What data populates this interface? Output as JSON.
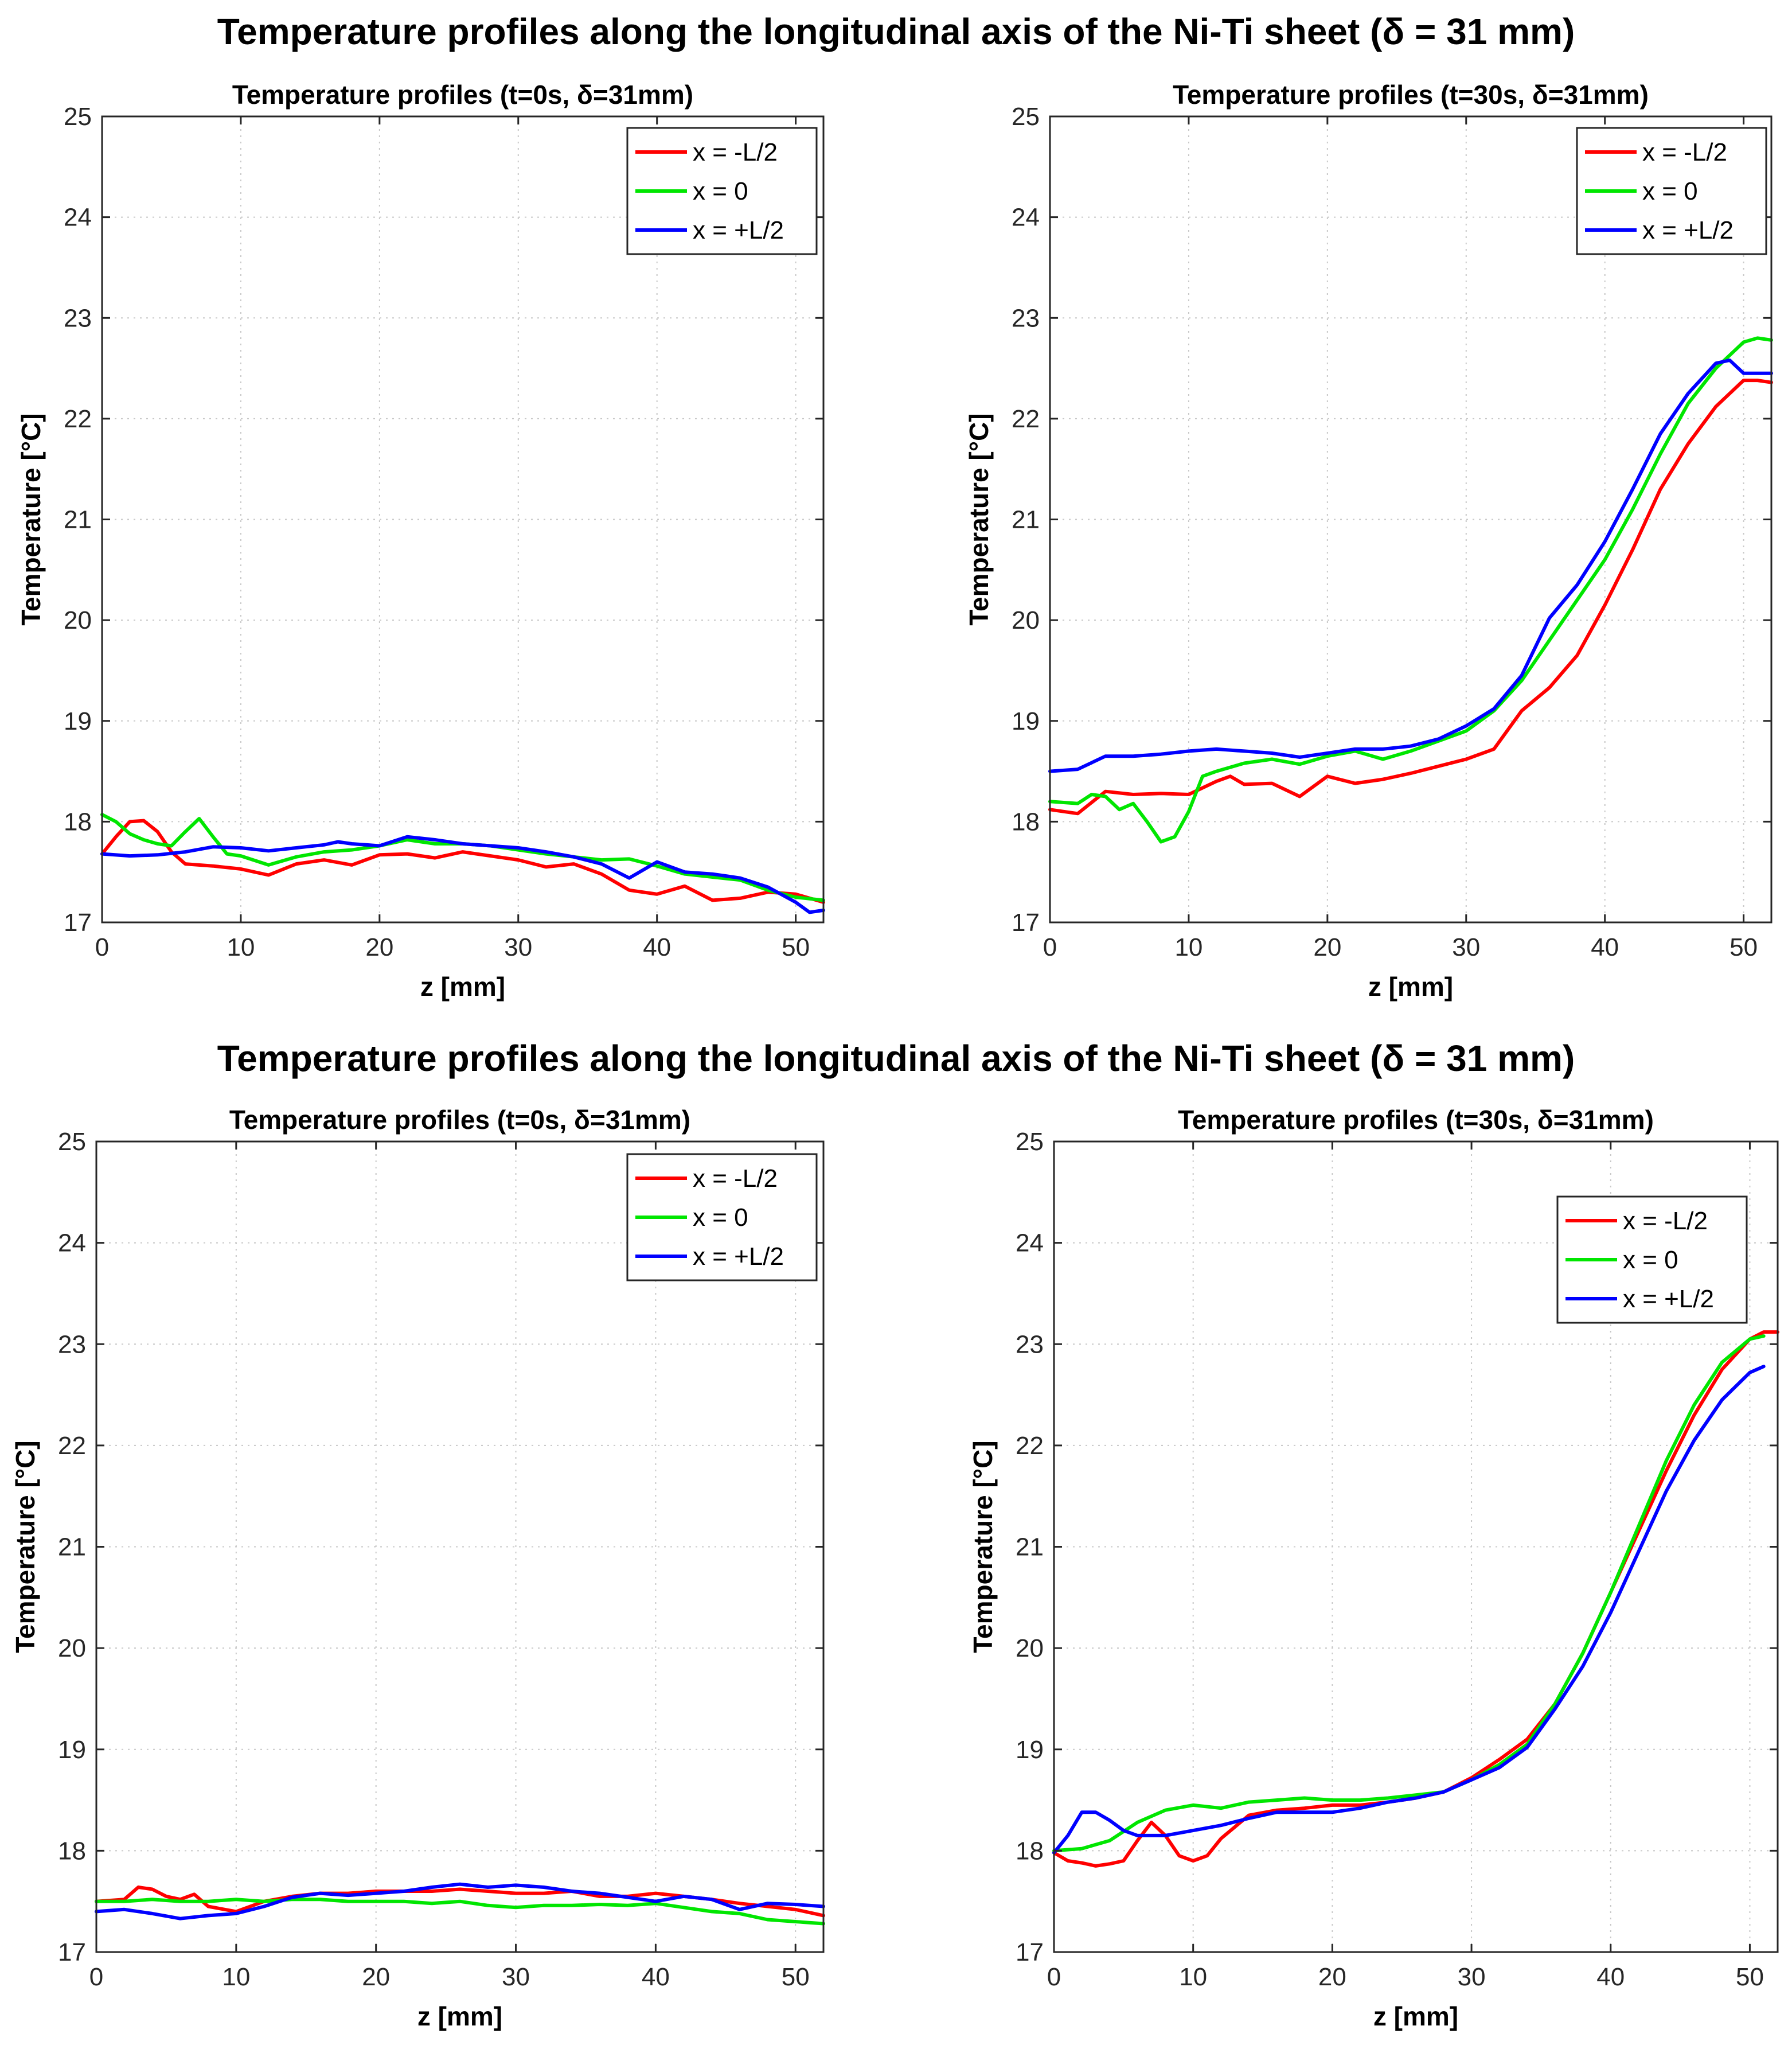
{
  "figure": {
    "title_top": "Temperature profiles along the longitudinal axis of the Ni-Ti sheet (δ = 31 mm)",
    "title_bottom": "Temperature profiles along the longitudinal axis of the Ni-Ti sheet (δ = 31 mm)"
  },
  "colors": {
    "red": "#ff0000",
    "green": "#00e600",
    "blue": "#0000ff"
  },
  "chart_data": [
    {
      "type": "line",
      "title": "Temperature profiles (t=0s, δ=31mm)",
      "xlabel": "z [mm]",
      "ylabel": "Temperature [°C]",
      "xlim": [
        0,
        52
      ],
      "ylim": [
        17,
        25
      ],
      "xticks": [
        0,
        10,
        20,
        30,
        40,
        50
      ],
      "yticks": [
        17,
        18,
        19,
        20,
        21,
        22,
        23,
        24,
        25
      ],
      "grid": true,
      "legend_position": "top-right",
      "series": [
        {
          "name": "x = -L/2",
          "color": "#ff0000",
          "x": [
            0,
            1,
            2,
            3,
            4,
            5,
            6,
            8,
            10,
            12,
            14,
            16,
            18,
            20,
            22,
            24,
            26,
            28,
            30,
            32,
            34,
            36,
            38,
            40,
            42,
            44,
            46,
            48,
            50,
            52
          ],
          "y": [
            17.68,
            17.85,
            18.0,
            18.01,
            17.9,
            17.7,
            17.58,
            17.56,
            17.53,
            17.47,
            17.58,
            17.62,
            17.57,
            17.67,
            17.68,
            17.64,
            17.7,
            17.66,
            17.62,
            17.55,
            17.58,
            17.48,
            17.32,
            17.28,
            17.36,
            17.22,
            17.24,
            17.3,
            17.28,
            17.2
          ]
        },
        {
          "name": "x = 0",
          "color": "#00e600",
          "x": [
            0,
            1,
            2,
            3,
            4,
            5,
            6,
            7,
            8,
            9,
            10,
            12,
            14,
            16,
            18,
            20,
            22,
            24,
            26,
            28,
            30,
            32,
            34,
            36,
            38,
            40,
            42,
            44,
            46,
            48,
            50,
            52
          ],
          "y": [
            18.07,
            18.0,
            17.88,
            17.82,
            17.78,
            17.76,
            17.9,
            18.03,
            17.85,
            17.68,
            17.66,
            17.57,
            17.65,
            17.7,
            17.72,
            17.76,
            17.82,
            17.78,
            17.78,
            17.76,
            17.72,
            17.68,
            17.65,
            17.62,
            17.63,
            17.56,
            17.48,
            17.45,
            17.42,
            17.32,
            17.25,
            17.22
          ]
        },
        {
          "name": "x = +L/2",
          "color": "#0000ff",
          "x": [
            0,
            2,
            4,
            6,
            8,
            10,
            12,
            14,
            16,
            17,
            18,
            20,
            22,
            24,
            26,
            28,
            30,
            32,
            34,
            36,
            38,
            40,
            42,
            44,
            46,
            48,
            50,
            51,
            52
          ],
          "y": [
            17.68,
            17.66,
            17.67,
            17.7,
            17.75,
            17.74,
            17.71,
            17.74,
            17.77,
            17.8,
            17.78,
            17.76,
            17.85,
            17.82,
            17.78,
            17.76,
            17.74,
            17.7,
            17.65,
            17.58,
            17.44,
            17.6,
            17.5,
            17.48,
            17.44,
            17.35,
            17.2,
            17.1,
            17.12
          ]
        }
      ]
    },
    {
      "type": "line",
      "title": "Temperature profiles (t=30s, δ=31mm)",
      "xlabel": "z [mm]",
      "ylabel": "Temperature [°C]",
      "xlim": [
        0,
        52
      ],
      "ylim": [
        17,
        25
      ],
      "xticks": [
        0,
        10,
        20,
        30,
        40,
        50
      ],
      "yticks": [
        17,
        18,
        19,
        20,
        21,
        22,
        23,
        24,
        25
      ],
      "grid": true,
      "legend_position": "top-right",
      "series": [
        {
          "name": "x = -L/2",
          "color": "#ff0000",
          "x": [
            0,
            2,
            4,
            6,
            8,
            10,
            12,
            13,
            14,
            16,
            18,
            20,
            22,
            24,
            26,
            28,
            30,
            32,
            34,
            36,
            38,
            40,
            42,
            44,
            46,
            48,
            50,
            51,
            52
          ],
          "y": [
            18.12,
            18.08,
            18.3,
            18.27,
            18.28,
            18.27,
            18.4,
            18.45,
            18.37,
            18.38,
            18.25,
            18.45,
            18.38,
            18.42,
            18.48,
            18.55,
            18.62,
            18.72,
            19.1,
            19.33,
            19.65,
            20.15,
            20.7,
            21.3,
            21.75,
            22.12,
            22.38,
            22.38,
            22.36
          ]
        },
        {
          "name": "x = 0",
          "color": "#00e600",
          "x": [
            0,
            2,
            3,
            4,
            5,
            6,
            7,
            8,
            9,
            10,
            11,
            12,
            14,
            16,
            18,
            20,
            22,
            24,
            26,
            28,
            30,
            32,
            34,
            36,
            38,
            40,
            42,
            44,
            46,
            48,
            50,
            51,
            52
          ],
          "y": [
            18.2,
            18.18,
            18.27,
            18.25,
            18.12,
            18.18,
            18.0,
            17.8,
            17.85,
            18.1,
            18.45,
            18.5,
            18.58,
            18.62,
            18.57,
            18.65,
            18.7,
            18.62,
            18.7,
            18.8,
            18.9,
            19.1,
            19.4,
            19.8,
            20.2,
            20.6,
            21.1,
            21.65,
            22.15,
            22.5,
            22.76,
            22.8,
            22.78
          ]
        },
        {
          "name": "x = +L/2",
          "color": "#0000ff",
          "x": [
            0,
            2,
            4,
            6,
            8,
            10,
            12,
            14,
            16,
            18,
            20,
            22,
            24,
            26,
            28,
            30,
            32,
            34,
            36,
            38,
            40,
            42,
            44,
            46,
            48,
            49,
            50,
            52
          ],
          "y": [
            18.5,
            18.52,
            18.65,
            18.65,
            18.67,
            18.7,
            18.72,
            18.7,
            18.68,
            18.64,
            18.68,
            18.72,
            18.72,
            18.75,
            18.82,
            18.95,
            19.12,
            19.45,
            20.02,
            20.35,
            20.78,
            21.3,
            21.85,
            22.25,
            22.55,
            22.58,
            22.45,
            22.45
          ]
        }
      ]
    },
    {
      "type": "line",
      "title": "Temperature profiles (t=0s, δ=31mm)",
      "xlabel": "z [mm]",
      "ylabel": "Temperature [°C]",
      "xlim": [
        0,
        52
      ],
      "ylim": [
        17,
        25
      ],
      "xticks": [
        0,
        10,
        20,
        30,
        40,
        50
      ],
      "yticks": [
        17,
        18,
        19,
        20,
        21,
        22,
        23,
        24,
        25
      ],
      "grid": true,
      "legend_position": "top-right",
      "series": [
        {
          "name": "x = -L/2",
          "color": "#ff0000",
          "x": [
            0,
            2,
            3,
            4,
            5,
            6,
            7,
            8,
            10,
            12,
            14,
            16,
            18,
            20,
            22,
            24,
            26,
            28,
            30,
            32,
            34,
            36,
            38,
            40,
            42,
            44,
            46,
            48,
            50,
            52
          ],
          "y": [
            17.5,
            17.52,
            17.64,
            17.62,
            17.55,
            17.52,
            17.57,
            17.45,
            17.4,
            17.5,
            17.55,
            17.58,
            17.58,
            17.6,
            17.6,
            17.6,
            17.62,
            17.6,
            17.58,
            17.58,
            17.6,
            17.55,
            17.55,
            17.58,
            17.55,
            17.52,
            17.48,
            17.45,
            17.42,
            17.36
          ]
        },
        {
          "name": "x = 0",
          "color": "#00e600",
          "x": [
            0,
            2,
            4,
            6,
            8,
            10,
            12,
            14,
            16,
            18,
            20,
            22,
            24,
            26,
            28,
            30,
            32,
            34,
            36,
            38,
            40,
            42,
            44,
            46,
            48,
            50,
            52
          ],
          "y": [
            17.5,
            17.5,
            17.52,
            17.5,
            17.5,
            17.52,
            17.5,
            17.52,
            17.52,
            17.5,
            17.5,
            17.5,
            17.48,
            17.5,
            17.46,
            17.44,
            17.46,
            17.46,
            17.47,
            17.46,
            17.48,
            17.44,
            17.4,
            17.38,
            17.32,
            17.3,
            17.28
          ]
        },
        {
          "name": "x = +L/2",
          "color": "#0000ff",
          "x": [
            0,
            2,
            4,
            6,
            8,
            10,
            12,
            14,
            16,
            18,
            20,
            22,
            24,
            26,
            28,
            30,
            32,
            34,
            36,
            38,
            40,
            42,
            44,
            46,
            48,
            50,
            52
          ],
          "y": [
            17.4,
            17.42,
            17.38,
            17.33,
            17.36,
            17.38,
            17.45,
            17.54,
            17.58,
            17.56,
            17.58,
            17.6,
            17.64,
            17.67,
            17.64,
            17.66,
            17.64,
            17.6,
            17.58,
            17.54,
            17.5,
            17.55,
            17.52,
            17.42,
            17.48,
            17.47,
            17.45
          ]
        }
      ]
    },
    {
      "type": "line",
      "title": "Temperature profiles (t=30s, δ=31mm)",
      "xlabel": "z [mm]",
      "ylabel": "Temperature [°C]",
      "xlim": [
        0,
        52
      ],
      "ylim": [
        17,
        25
      ],
      "xticks": [
        0,
        10,
        20,
        30,
        40,
        50
      ],
      "yticks": [
        17,
        18,
        19,
        20,
        21,
        22,
        23,
        24,
        25
      ],
      "grid": true,
      "legend_position": "right",
      "series": [
        {
          "name": "x = -L/2",
          "color": "#ff0000",
          "x": [
            0,
            1,
            2,
            3,
            4,
            5,
            6,
            7,
            8,
            9,
            10,
            11,
            12,
            14,
            16,
            18,
            20,
            22,
            24,
            26,
            28,
            30,
            32,
            34,
            36,
            38,
            40,
            42,
            44,
            46,
            48,
            50,
            51,
            52
          ],
          "y": [
            17.98,
            17.9,
            17.88,
            17.85,
            17.87,
            17.9,
            18.1,
            18.28,
            18.15,
            17.95,
            17.9,
            17.95,
            18.12,
            18.35,
            18.4,
            18.42,
            18.45,
            18.45,
            18.48,
            18.52,
            18.58,
            18.72,
            18.9,
            19.1,
            19.45,
            19.95,
            20.55,
            21.15,
            21.75,
            22.3,
            22.75,
            23.05,
            23.12,
            23.12
          ]
        },
        {
          "name": "x = 0",
          "color": "#00e600",
          "x": [
            0,
            2,
            4,
            6,
            8,
            10,
            12,
            14,
            16,
            18,
            20,
            22,
            24,
            26,
            28,
            30,
            32,
            34,
            36,
            38,
            40,
            42,
            44,
            46,
            48,
            50,
            51
          ],
          "y": [
            18.0,
            18.02,
            18.1,
            18.28,
            18.4,
            18.45,
            18.42,
            18.48,
            18.5,
            18.52,
            18.5,
            18.5,
            18.52,
            18.55,
            18.58,
            18.7,
            18.85,
            19.05,
            19.45,
            19.95,
            20.55,
            21.2,
            21.85,
            22.4,
            22.82,
            23.05,
            23.08
          ]
        },
        {
          "name": "x = +L/2",
          "color": "#0000ff",
          "x": [
            0,
            1,
            2,
            3,
            4,
            5,
            6,
            8,
            10,
            12,
            14,
            16,
            18,
            20,
            22,
            24,
            26,
            28,
            30,
            32,
            34,
            36,
            38,
            40,
            42,
            44,
            46,
            48,
            50,
            51
          ],
          "y": [
            17.98,
            18.15,
            18.38,
            18.38,
            18.3,
            18.2,
            18.15,
            18.15,
            18.2,
            18.25,
            18.32,
            18.38,
            18.38,
            18.38,
            18.42,
            18.48,
            18.52,
            18.58,
            18.7,
            18.82,
            19.02,
            19.4,
            19.82,
            20.35,
            20.95,
            21.55,
            22.05,
            22.45,
            22.72,
            22.78
          ]
        }
      ]
    }
  ]
}
